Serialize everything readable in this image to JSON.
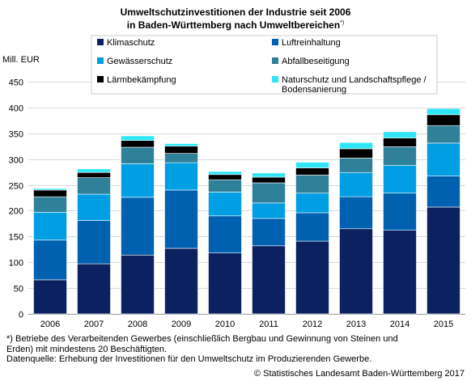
{
  "title_line1": "Umweltschutzinvestitionen der Industrie seit 2006",
  "title_line2": "in Baden-Württemberg nach Umweltbereichen",
  "title_mark": "*)",
  "chart_data": {
    "type": "bar",
    "stacked": true,
    "ylabel": "Mill. EUR",
    "ylim": [
      0,
      450
    ],
    "yticks": [
      0,
      50,
      100,
      150,
      200,
      250,
      300,
      350,
      400,
      450
    ],
    "grid": true,
    "categories": [
      "2006",
      "2007",
      "2008",
      "2009",
      "2010",
      "2011",
      "2012",
      "2013",
      "2014",
      "2015"
    ],
    "series": [
      {
        "name": "Klimaschutz",
        "color": "#0c2160",
        "values": [
          66,
          97,
          114,
          127,
          118,
          132,
          141,
          165,
          162,
          207
        ]
      },
      {
        "name": "Gewässerschutz",
        "color": "#009fe3",
        "values": [
          54,
          51,
          65,
          53,
          46,
          30,
          38,
          47,
          54,
          64
        ]
      },
      {
        "name": "Lärmbekämpfung",
        "color": "#000000",
        "values": [
          13,
          10,
          13,
          14,
          10,
          11,
          14,
          18,
          17,
          21
        ]
      },
      {
        "name": "Luftreinhaltung",
        "color": "#0061b0",
        "values": [
          77,
          84,
          112,
          113,
          72,
          53,
          55,
          62,
          72,
          60
        ]
      },
      {
        "name": "Abfallbeseitigung",
        "color": "#2e8199",
        "values": [
          30,
          32,
          32,
          18,
          24,
          39,
          35,
          28,
          36,
          34
        ]
      },
      {
        "name": "Naturschutz und Landschaftspflege / Bodensanierung",
        "color": "#2ee6f5",
        "values": [
          3,
          7,
          9,
          5,
          6,
          8,
          11,
          12,
          12,
          12
        ]
      }
    ],
    "stack_order": [
      "Klimaschutz",
      "Luftreinhaltung",
      "Gewässerschutz",
      "Abfallbeseitigung",
      "Lärmbekämpfung",
      "Naturschutz und Landschaftspflege / Bodensanierung"
    ],
    "legend_placement": "top"
  },
  "footnote_lines": [
    "*) Betriebe des Verarbeitenden Gewerbes (einschließlich Bergbau und Gewinnung von Steinen und",
    "Erden) mit mindestens 20 Beschäftigten.",
    "Datenquelle: Erhebung der Investitionen für den Umweltschutz im Produzierenden Gewerbe."
  ],
  "copyright": "© Statistisches Landesamt Baden-Württemberg 2017"
}
